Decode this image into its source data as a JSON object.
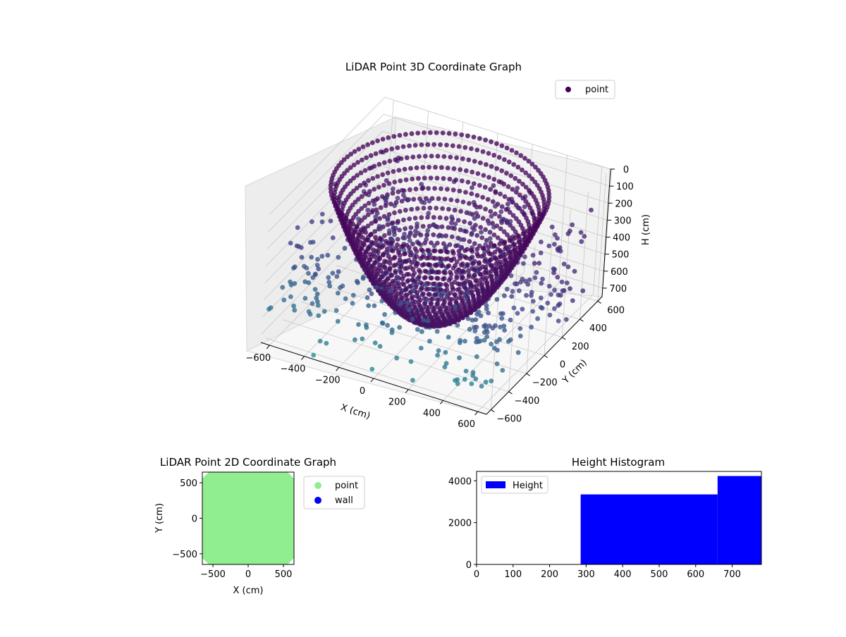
{
  "chart_data": [
    {
      "id": "lidar3d",
      "type": "scatter",
      "title": "LiDAR Point 3D Coordinate Graph",
      "xlabel": "X (cm)",
      "ylabel": "Y (cm)",
      "zlabel": "H (cm)",
      "xticks": [
        -600,
        -400,
        -200,
        0,
        200,
        400,
        600
      ],
      "yticks": [
        -600,
        -400,
        -200,
        0,
        200,
        400,
        600
      ],
      "zticks": [
        0,
        100,
        200,
        300,
        400,
        500,
        600,
        700
      ],
      "xlim": [
        -650,
        650
      ],
      "ylim": [
        -650,
        650
      ],
      "zlim": [
        750,
        0
      ],
      "z_inverted": true,
      "legend": {
        "placement": "top-right",
        "entries": [
          {
            "label": "point",
            "color": "#440154"
          }
        ]
      },
      "colormap": "viridis",
      "marker": "circle",
      "description_of_points": "bowl-shaped grid of points (rim at H≈0, bottom at H≈750) plus scattered outlier points"
    },
    {
      "id": "lidar2d",
      "type": "scatter",
      "title": "LiDAR Point 2D Coordinate Graph",
      "xlabel": "X (cm)",
      "ylabel": "Y (cm)",
      "xticks": [
        -500,
        0,
        500
      ],
      "yticks": [
        -500,
        0,
        500
      ],
      "xlim": [
        -650,
        650
      ],
      "ylim": [
        -650,
        650
      ],
      "series": [
        {
          "name": "point",
          "color": "#90ee90",
          "region": "filled octagon spanning about -650..650 in X and Y"
        },
        {
          "name": "wall",
          "color": "#0000ff",
          "values": []
        }
      ],
      "legend": {
        "placement": "outside-right"
      }
    },
    {
      "id": "height_hist",
      "type": "bar",
      "title": "Height Histogram",
      "xticks": [
        0,
        100,
        200,
        300,
        400,
        500,
        600,
        700
      ],
      "yticks": [
        0,
        2000,
        4000
      ],
      "xlim": [
        0,
        780
      ],
      "ylim": [
        0,
        4450
      ],
      "bins": [
        {
          "x0": 285,
          "x1": 660,
          "count": 3350
        },
        {
          "x0": 660,
          "x1": 780,
          "count": 4230
        }
      ],
      "series": [
        {
          "name": "Height",
          "color": "#0000ff"
        }
      ],
      "legend": {
        "placement": "top-left"
      }
    }
  ]
}
